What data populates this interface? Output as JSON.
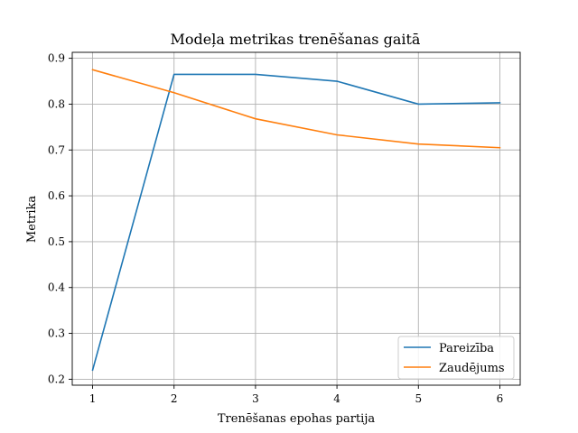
{
  "chart_data": {
    "type": "line",
    "title": "Modeļa metrikas trenēšanas gaitā",
    "xlabel": "Trenēšanas epohas partija",
    "ylabel": "Metrika",
    "x": [
      1,
      2,
      3,
      4,
      5,
      6
    ],
    "xlim": [
      0.75,
      6.25
    ],
    "ylim": [
      0.187,
      0.913
    ],
    "xticks": [
      "1",
      "2",
      "3",
      "4",
      "5",
      "6"
    ],
    "yticks": [
      "0.2",
      "0.3",
      "0.4",
      "0.5",
      "0.6",
      "0.7",
      "0.8",
      "0.9"
    ],
    "grid": true,
    "legend_position": "lower-right",
    "series": [
      {
        "name": "Pareizība",
        "color": "#1f77b4",
        "values": [
          0.22,
          0.865,
          0.865,
          0.85,
          0.8,
          0.803
        ]
      },
      {
        "name": "Zaudējums",
        "color": "#ff7f0e",
        "values": [
          0.875,
          0.825,
          0.768,
          0.733,
          0.713,
          0.705
        ]
      }
    ]
  }
}
